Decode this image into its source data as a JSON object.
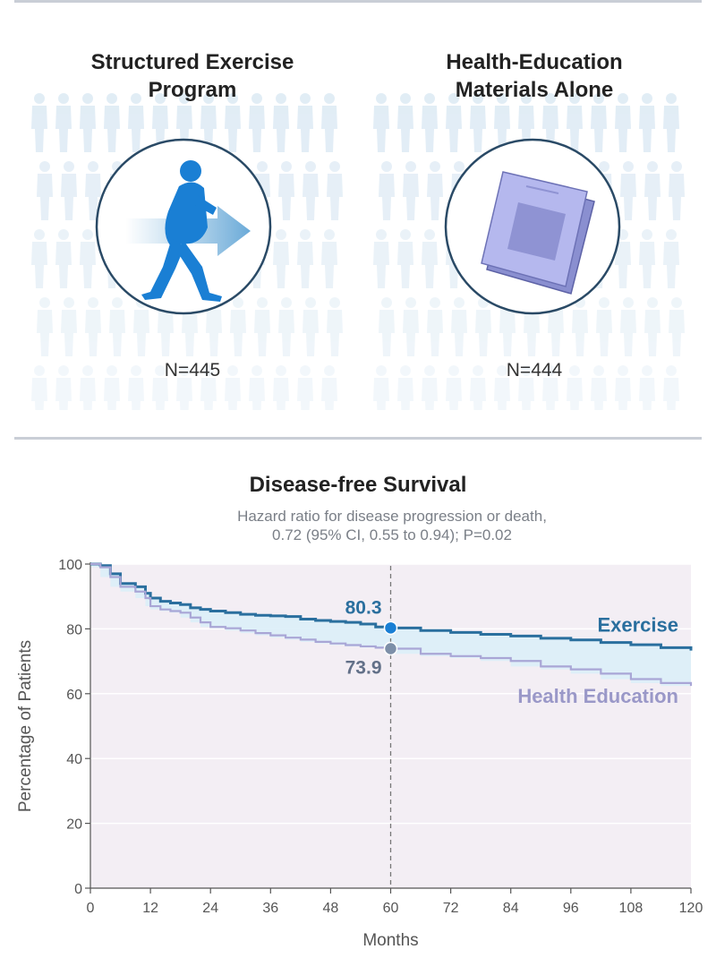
{
  "arms": [
    {
      "title_line1": "Structured Exercise",
      "title_line2": "Program",
      "n": "N=445",
      "icon": "walking-person-icon"
    },
    {
      "title_line1": "Health-Education",
      "title_line2": "Materials Alone",
      "n": "N=444",
      "icon": "booklet-icon"
    }
  ],
  "chart_data": {
    "type": "line",
    "title": "Disease-free Survival",
    "subtitle_line1": "Hazard ratio for disease progression or death,",
    "subtitle_line2": "0.72 (95% CI, 0.55 to 0.94); P=0.02",
    "xlabel": "Months",
    "ylabel": "Percentage of Patients",
    "xlim": [
      0,
      120
    ],
    "ylim": [
      0,
      100
    ],
    "x_ticks": [
      0,
      12,
      24,
      36,
      48,
      60,
      72,
      84,
      96,
      108,
      120
    ],
    "y_ticks": [
      0,
      20,
      40,
      60,
      80,
      100
    ],
    "series": [
      {
        "name": "Exercise",
        "color": "#2a6f9e",
        "x": [
          0,
          2,
          4,
          6,
          9,
          11,
          12,
          14,
          16,
          18,
          20,
          22,
          24,
          27,
          30,
          33,
          36,
          39,
          42,
          45,
          48,
          51,
          54,
          57,
          60,
          66,
          72,
          78,
          84,
          90,
          96,
          102,
          108,
          114,
          120
        ],
        "y": [
          100,
          99.5,
          97,
          94,
          93,
          91,
          89.5,
          88.5,
          88,
          87.5,
          86.5,
          86,
          85.5,
          85,
          84.5,
          84.2,
          84,
          83.8,
          83,
          82.6,
          82.3,
          82,
          81.5,
          80.6,
          80.3,
          79.5,
          78.9,
          78.3,
          77.8,
          77.1,
          76.6,
          75.8,
          75.1,
          74.2,
          73.3
        ]
      },
      {
        "name": "Health Education",
        "color": "#a9a6d6",
        "x": [
          0,
          2,
          4,
          6,
          9,
          11,
          12,
          14,
          16,
          18,
          20,
          22,
          24,
          27,
          30,
          33,
          36,
          39,
          42,
          45,
          48,
          51,
          54,
          57,
          60,
          66,
          72,
          78,
          84,
          90,
          96,
          102,
          108,
          114,
          120
        ],
        "y": [
          100,
          99,
          96,
          93,
          91.5,
          89.5,
          87,
          86,
          85.5,
          85,
          83.5,
          82,
          80.6,
          80.2,
          79.5,
          78.7,
          78,
          77.3,
          76.7,
          76,
          75.5,
          75,
          74.6,
          74.2,
          73.9,
          72.3,
          71.6,
          71,
          70.1,
          68.4,
          67.5,
          66.2,
          64.5,
          63.3,
          62.4
        ]
      }
    ],
    "marker_x": 60,
    "annotations": [
      {
        "series": "Exercise",
        "x": 60,
        "y": 80.3,
        "label": "80.3"
      },
      {
        "series": "Health Education",
        "x": 60,
        "y": 73.9,
        "label": "73.9"
      }
    ],
    "legend_placement": "inline-right",
    "grid": true
  }
}
